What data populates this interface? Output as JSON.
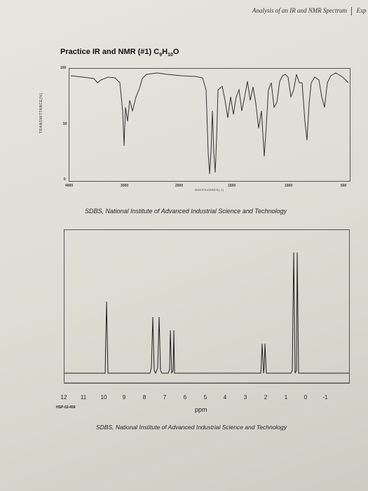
{
  "running_head": {
    "title": "Analysis of an IR and NMR Spectrum",
    "next": "Exp"
  },
  "heading": {
    "prefix": "Practice IR and NMR (#1) C",
    "c": "9",
    "h_label": "H",
    "h": "10",
    "o_label": "O"
  },
  "ir": {
    "y_title": "TRANSMITTANCE[%]",
    "y_ticks": [
      "100",
      "50",
      "0"
    ],
    "x_ticks": [
      "4000",
      "3000",
      "2000",
      "1500",
      "1000",
      "500"
    ],
    "x_title": "WAVENUMBER[-1]",
    "stroke": "#333333"
  },
  "ir_credit": "SDBS, National Institute of Advanced Industrial Science and Technology",
  "nmr": {
    "x_ticks": [
      "12",
      "11",
      "10",
      "9",
      "8",
      "7",
      "6",
      "5",
      "4",
      "3",
      "2",
      "1",
      "0",
      "-1"
    ],
    "code": "HSP-02-459",
    "unit": "ppm",
    "stroke": "#222222"
  },
  "nmr_credit": "SDBS, National Institute of Advanced Industrial Science and Technology"
}
